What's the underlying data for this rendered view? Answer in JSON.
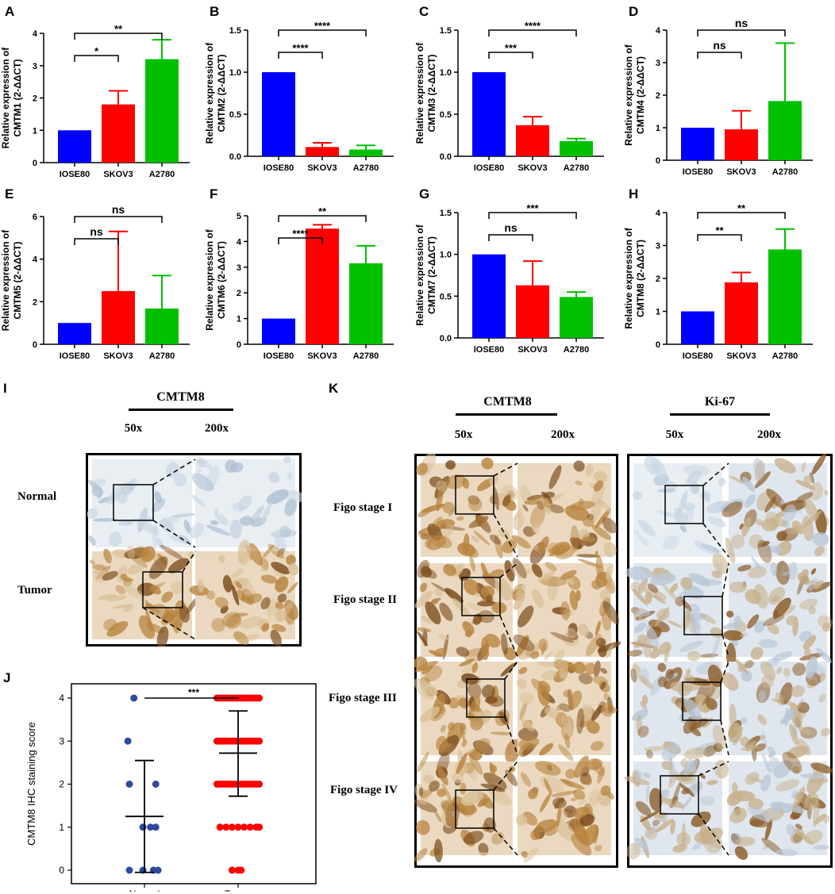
{
  "bar_style": {
    "colors": {
      "IOSE80": "#0000ff",
      "SKOV3": "#ff0000",
      "A2780": "#00c000"
    },
    "text_color": "#000000"
  },
  "chart_data": [
    {
      "panel": "A",
      "type": "bar",
      "categories": [
        "IOSE80",
        "SKOV3",
        "A2780"
      ],
      "values": [
        1.0,
        1.8,
        3.2
      ],
      "errors": [
        0,
        0.42,
        0.6
      ],
      "ylabel": [
        "Relative expression of",
        "CMTM1 (2-ΔΔCT)"
      ],
      "ylim": [
        0,
        4
      ],
      "yticks": [
        "0",
        "1",
        "2",
        "3",
        "4"
      ],
      "brackets": [
        {
          "from": 0,
          "to": 1,
          "label": "*"
        },
        {
          "from": 0,
          "to": 2,
          "label": "**"
        }
      ]
    },
    {
      "panel": "B",
      "type": "bar",
      "categories": [
        "IOSE80",
        "SKOV3",
        "A2780"
      ],
      "values": [
        1.0,
        0.11,
        0.08
      ],
      "errors": [
        0,
        0.05,
        0.05
      ],
      "ylabel": [
        "Relative expression of",
        "CMTM2 (2-ΔΔCT)"
      ],
      "ylim": [
        0,
        1.5
      ],
      "yticks": [
        "0.0",
        "0.5",
        "1.0",
        "1.5"
      ],
      "brackets": [
        {
          "from": 0,
          "to": 1,
          "label": "****"
        },
        {
          "from": 0,
          "to": 2,
          "label": "****"
        }
      ]
    },
    {
      "panel": "C",
      "type": "bar",
      "categories": [
        "IOSE80",
        "SKOV3",
        "A2780"
      ],
      "values": [
        1.0,
        0.37,
        0.18
      ],
      "errors": [
        0,
        0.1,
        0.03
      ],
      "ylabel": [
        "Relative expression of",
        "CMTM3 (2-ΔΔCT)"
      ],
      "ylim": [
        0,
        1.5
      ],
      "yticks": [
        "0.0",
        "0.5",
        "1.0",
        "1.5"
      ],
      "brackets": [
        {
          "from": 0,
          "to": 1,
          "label": "***"
        },
        {
          "from": 0,
          "to": 2,
          "label": "****"
        }
      ]
    },
    {
      "panel": "D",
      "type": "bar",
      "categories": [
        "IOSE80",
        "SKOV3",
        "A2780"
      ],
      "values": [
        1.0,
        0.95,
        1.82
      ],
      "errors": [
        0,
        0.57,
        1.78
      ],
      "ylabel": [
        "Relative expression of",
        "CMTM4 (2-ΔΔCT)"
      ],
      "ylim": [
        0,
        4
      ],
      "yticks": [
        "0",
        "1",
        "2",
        "3",
        "4"
      ],
      "brackets": [
        {
          "from": 0,
          "to": 1,
          "label": "ns"
        },
        {
          "from": 0,
          "to": 2,
          "label": "ns"
        }
      ]
    },
    {
      "panel": "E",
      "type": "bar",
      "categories": [
        "IOSE80",
        "SKOV3",
        "A2780"
      ],
      "values": [
        1.0,
        2.5,
        1.68
      ],
      "errors": [
        0,
        2.8,
        1.55
      ],
      "ylabel": [
        "Relative expression of",
        "CMTM5 (2-ΔΔCT)"
      ],
      "ylim": [
        0,
        6
      ],
      "yticks": [
        "0",
        "2",
        "4",
        "6"
      ],
      "brackets": [
        {
          "from": 0,
          "to": 1,
          "label": "ns"
        },
        {
          "from": 0,
          "to": 2,
          "label": "ns"
        }
      ]
    },
    {
      "panel": "F",
      "type": "bar",
      "categories": [
        "IOSE80",
        "SKOV3",
        "A2780"
      ],
      "values": [
        1.0,
        4.5,
        3.15
      ],
      "errors": [
        0,
        0.15,
        0.68
      ],
      "ylabel": [
        "Relative expression of",
        "CMTM6 (2-ΔΔCT)"
      ],
      "ylim": [
        0,
        5
      ],
      "yticks": [
        "0",
        "1",
        "2",
        "3",
        "4",
        "5"
      ],
      "brackets": [
        {
          "from": 0,
          "to": 1,
          "label": "****"
        },
        {
          "from": 0,
          "to": 2,
          "label": "**"
        }
      ]
    },
    {
      "panel": "G",
      "type": "bar",
      "categories": [
        "IOSE80",
        "SKOV3",
        "A2780"
      ],
      "values": [
        1.0,
        0.63,
        0.49
      ],
      "errors": [
        0,
        0.29,
        0.06
      ],
      "ylabel": [
        "Relative expression of",
        "CMTM7 (2-ΔΔCT)"
      ],
      "ylim": [
        0,
        1.5
      ],
      "yticks": [
        "0.0",
        "0.5",
        "1.0",
        "1.5"
      ],
      "brackets": [
        {
          "from": 0,
          "to": 1,
          "label": "ns"
        },
        {
          "from": 0,
          "to": 2,
          "label": "***"
        }
      ]
    },
    {
      "panel": "H",
      "type": "bar",
      "categories": [
        "IOSE80",
        "SKOV3",
        "A2780"
      ],
      "values": [
        1.0,
        1.88,
        2.88
      ],
      "errors": [
        0,
        0.3,
        0.62
      ],
      "ylabel": [
        "Relative expression of",
        "CMTM8 (2-ΔΔCT)"
      ],
      "ylim": [
        0,
        4
      ],
      "yticks": [
        "0",
        "1",
        "2",
        "3",
        "4"
      ],
      "brackets": [
        {
          "from": 0,
          "to": 1,
          "label": "**"
        },
        {
          "from": 0,
          "to": 2,
          "label": "**"
        }
      ]
    },
    {
      "panel": "J",
      "type": "scatter",
      "categories": [
        "Normal",
        "Tumor"
      ],
      "ylabel": "CMTM8 IHC staining score",
      "ylim": [
        0,
        4
      ],
      "yticks": [
        "0",
        "1",
        "2",
        "3",
        "4"
      ],
      "groups": [
        {
          "name": "Normal",
          "color": "#2e4a9e",
          "points": [
            [
              -0.14,
              4
            ],
            [
              -0.22,
              3
            ],
            [
              -0.2,
              2
            ],
            [
              0.15,
              2
            ],
            [
              -0.02,
              1
            ],
            [
              0.08,
              1
            ],
            [
              0.15,
              1
            ],
            [
              -0.2,
              0
            ],
            [
              -0.02,
              0
            ],
            [
              0.12,
              0
            ],
            [
              0.18,
              0
            ]
          ],
          "mean": 1.25,
          "sd_low": -0.05,
          "sd_high": 2.55
        },
        {
          "name": "Tumor",
          "color": "#ff0000",
          "points": [
            [
              -0.28,
              4
            ],
            [
              -0.24,
              4
            ],
            [
              -0.2,
              4
            ],
            [
              -0.16,
              4
            ],
            [
              -0.12,
              4
            ],
            [
              -0.08,
              4
            ],
            [
              -0.04,
              4
            ],
            [
              0.0,
              4
            ],
            [
              0.04,
              4
            ],
            [
              0.08,
              4
            ],
            [
              0.12,
              4
            ],
            [
              0.16,
              4
            ],
            [
              0.2,
              4
            ],
            [
              0.24,
              4
            ],
            [
              0.28,
              4
            ],
            [
              -0.28,
              3
            ],
            [
              -0.24,
              3
            ],
            [
              -0.2,
              3
            ],
            [
              -0.16,
              3
            ],
            [
              -0.12,
              3
            ],
            [
              -0.08,
              3
            ],
            [
              -0.04,
              3
            ],
            [
              0.0,
              3
            ],
            [
              0.04,
              3
            ],
            [
              0.08,
              3
            ],
            [
              0.12,
              3
            ],
            [
              0.16,
              3
            ],
            [
              0.2,
              3
            ],
            [
              0.24,
              3
            ],
            [
              0.28,
              3
            ],
            [
              -0.28,
              2
            ],
            [
              -0.24,
              2
            ],
            [
              -0.2,
              2
            ],
            [
              -0.16,
              2
            ],
            [
              -0.12,
              2
            ],
            [
              -0.08,
              2
            ],
            [
              -0.04,
              2
            ],
            [
              0.0,
              2
            ],
            [
              0.04,
              2
            ],
            [
              0.08,
              2
            ],
            [
              0.12,
              2
            ],
            [
              0.16,
              2
            ],
            [
              0.2,
              2
            ],
            [
              0.24,
              2
            ],
            [
              0.28,
              2
            ],
            [
              -0.24,
              1
            ],
            [
              -0.16,
              1
            ],
            [
              -0.08,
              1
            ],
            [
              0.0,
              1
            ],
            [
              0.08,
              1
            ],
            [
              0.16,
              1
            ],
            [
              0.24,
              1
            ],
            [
              0.28,
              1
            ],
            [
              -0.08,
              0
            ],
            [
              0.0,
              0
            ],
            [
              0.04,
              0
            ]
          ],
          "mean": 2.72,
          "sd_low": 1.72,
          "sd_high": 3.7
        }
      ],
      "bracket": {
        "label": "***"
      }
    }
  ],
  "panel_letters": {
    "A": "A",
    "B": "B",
    "C": "C",
    "D": "D",
    "E": "E",
    "F": "F",
    "G": "G",
    "H": "H",
    "I": "I",
    "J": "J",
    "K": "K"
  },
  "panel_i": {
    "header": "CMTM8",
    "col_labels": [
      "50x",
      "200x"
    ],
    "row_labels": [
      "Normal",
      "Tumor"
    ]
  },
  "panel_k": {
    "cmtm8_header": "CMTM8",
    "ki67_header": "Ki-67",
    "col_labels": [
      "50x",
      "200x",
      "50x",
      "200x"
    ],
    "row_labels": [
      "Figo stage I",
      "Figo stage II",
      "Figo stage III",
      "Figo stage IV"
    ]
  },
  "tissue_colors": {
    "pale": "#e9eef2",
    "pale_tissue": "#c9d6e3",
    "brown_bg": "#ead9c0",
    "brown": "#b8843f",
    "dark_brown": "#7a4a1a"
  }
}
